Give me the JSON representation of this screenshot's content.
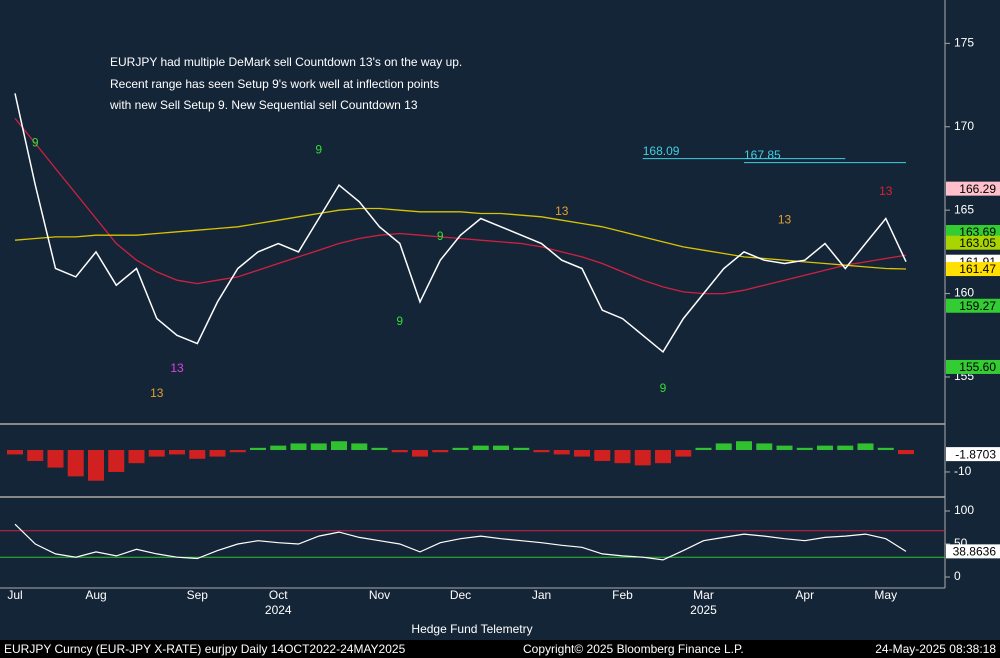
{
  "chart_data": [
    {
      "type": "line",
      "annotation": [
        "EURJPY had multiple DeMark sell Countdown 13's on the way up.",
        "Recent range has seen Setup 9's work well at inflection points",
        "with new Sell Setup 9.  New Sequential sell Countdown 13"
      ],
      "categories": [
        "Jul",
        null,
        null,
        null,
        "Aug",
        null,
        null,
        null,
        null,
        "Sep",
        null,
        null,
        null,
        "Oct",
        null,
        null,
        null,
        null,
        "Nov",
        null,
        null,
        null,
        "Dec",
        null,
        null,
        null,
        "Jan",
        null,
        null,
        null,
        "Feb",
        null,
        null,
        null,
        "Mar",
        null,
        null,
        null,
        null,
        "Apr",
        null,
        null,
        null,
        "May",
        null
      ],
      "years": [
        {
          "index": 13,
          "label": "2024"
        },
        {
          "index": 34,
          "label": "2025"
        }
      ],
      "series": [
        {
          "color": "#ffffff",
          "values": [
            172,
            166.5,
            161.5,
            161.0,
            162.5,
            160.5,
            161.5,
            158.5,
            157.5,
            157.0,
            159.5,
            161.5,
            162.5,
            163.0,
            162.5,
            164.5,
            166.5,
            165.5,
            164.0,
            163.0,
            159.5,
            162.0,
            163.5,
            164.5,
            164.0,
            163.5,
            163.0,
            162.0,
            161.5,
            159.0,
            158.5,
            157.5,
            156.5,
            158.5,
            160.0,
            161.5,
            162.5,
            162.0,
            161.8,
            162.0,
            163.0,
            161.5,
            163.0,
            164.5,
            161.91
          ]
        },
        {
          "color": "#d9c400",
          "values": [
            163.2,
            163.3,
            163.4,
            163.4,
            163.5,
            163.5,
            163.5,
            163.6,
            163.7,
            163.8,
            163.9,
            164.0,
            164.2,
            164.4,
            164.6,
            164.8,
            165.0,
            165.1,
            165.1,
            165.0,
            164.9,
            164.9,
            164.9,
            164.8,
            164.8,
            164.7,
            164.6,
            164.4,
            164.2,
            164.0,
            163.7,
            163.4,
            163.1,
            162.8,
            162.6,
            162.4,
            162.2,
            162.1,
            162.0,
            161.9,
            161.8,
            161.7,
            161.6,
            161.5,
            161.47
          ]
        },
        {
          "color": "#d02040",
          "values": [
            170.5,
            169.0,
            167.5,
            166.0,
            164.5,
            163.0,
            162.0,
            161.3,
            160.8,
            160.6,
            160.8,
            161.0,
            161.4,
            161.8,
            162.2,
            162.6,
            163.0,
            163.3,
            163.5,
            163.6,
            163.5,
            163.4,
            163.3,
            163.2,
            163.1,
            163.0,
            162.8,
            162.5,
            162.2,
            161.8,
            161.3,
            160.8,
            160.4,
            160.1,
            160.0,
            160.0,
            160.2,
            160.5,
            160.8,
            161.1,
            161.4,
            161.7,
            161.9,
            162.1,
            162.3
          ]
        }
      ],
      "ylim": [
        152.3,
        177.6
      ],
      "yticks": [
        155,
        160,
        165,
        170,
        175
      ],
      "levels": [
        {
          "value": 168.09,
          "color": "#40d0e0",
          "from": 31,
          "to": 41
        },
        {
          "value": 167.85,
          "color": "#40d0e0",
          "from": 36,
          "to": 44
        }
      ],
      "price_tags": [
        {
          "value": 166.29,
          "color": "#ffc0cb"
        },
        {
          "value": 163.69,
          "color": "#33cc33"
        },
        {
          "value": 163.05,
          "color": "#a8d400"
        },
        {
          "value": 161.91,
          "color": "#ffffff"
        },
        {
          "value": 161.47,
          "color": "#ffe000"
        },
        {
          "value": 159.27,
          "color": "#33cc33"
        },
        {
          "value": 155.6,
          "color": "#33cc33",
          "label": "155.60"
        }
      ],
      "demark": [
        {
          "label": "9",
          "index": 1,
          "value": 169.0,
          "color": "#33dd33"
        },
        {
          "label": "13",
          "index": 7,
          "value": 154.0,
          "color": "#e0a030"
        },
        {
          "label": "13",
          "index": 8,
          "value": 155.5,
          "color": "#e040e0"
        },
        {
          "label": "9",
          "index": 15,
          "value": 168.6,
          "color": "#33dd33"
        },
        {
          "label": "9",
          "index": 19,
          "value": 158.3,
          "color": "#33dd33"
        },
        {
          "label": "9",
          "index": 21,
          "value": 163.4,
          "color": "#33dd33"
        },
        {
          "label": "13",
          "index": 27,
          "value": 164.9,
          "color": "#e0a030"
        },
        {
          "label": "9",
          "index": 32,
          "value": 154.3,
          "color": "#33dd33"
        },
        {
          "label": "13",
          "index": 38,
          "value": 164.4,
          "color": "#e0a030"
        },
        {
          "label": "13",
          "index": 43,
          "value": 166.1,
          "color": "#e02030"
        }
      ]
    },
    {
      "type": "bar",
      "values": [
        -2,
        -5,
        -8,
        -12,
        -14,
        -10,
        -6,
        -3,
        -2,
        -4,
        -3,
        -1,
        1,
        2,
        3,
        3,
        4,
        3,
        1,
        -1,
        -3,
        -1,
        1,
        2,
        2,
        1,
        -1,
        -2,
        -3,
        -5,
        -6,
        -7,
        -6,
        -3,
        1,
        3,
        4,
        3,
        2,
        1,
        2,
        2,
        3,
        1,
        -1.87
      ],
      "pos_color": "#30c030",
      "neg_color": "#d02020",
      "ylim": [
        -20.5,
        11.4
      ],
      "yticks": [
        -10
      ],
      "tag": {
        "value": -1.8703,
        "color": "#ffffff"
      }
    },
    {
      "type": "line",
      "values": [
        80,
        50,
        35,
        30,
        38,
        32,
        42,
        35,
        30,
        28,
        40,
        50,
        55,
        52,
        50,
        62,
        68,
        60,
        55,
        50,
        38,
        52,
        58,
        62,
        58,
        55,
        52,
        48,
        45,
        35,
        32,
        30,
        26,
        40,
        55,
        60,
        65,
        62,
        58,
        55,
        60,
        62,
        65,
        58,
        38.8636
      ],
      "color": "#ffffff",
      "ylim": [
        -13.6,
        119.7
      ],
      "yticks": [
        0,
        50,
        100
      ],
      "bands": [
        {
          "value": 70,
          "color": "#d02040"
        },
        {
          "value": 30,
          "color": "#30c030"
        }
      ],
      "tag": {
        "value": 38.8636,
        "color": "#ffffff"
      }
    }
  ],
  "footer": {
    "title": "Hedge Fund Telemetry",
    "ticker": "EURJPY Curncy (EUR-JPY X-RATE) eurjpy  Daily 14OCT2022-24MAY2025",
    "copyright": "Copyright© 2025 Bloomberg Finance L.P.",
    "timestamp": "24-May-2025 08:38:18"
  }
}
